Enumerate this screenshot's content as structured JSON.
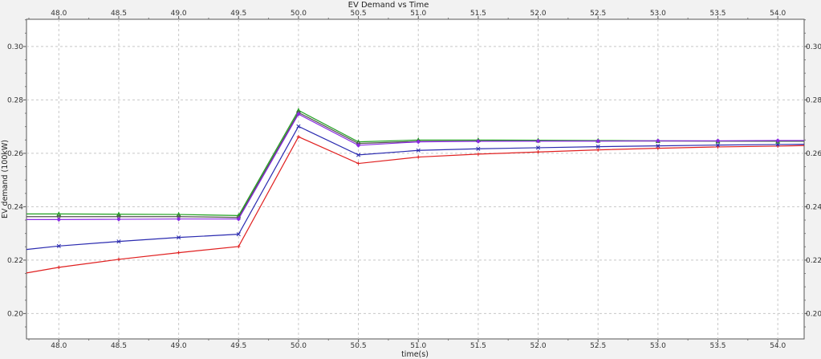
{
  "chart_data": {
    "type": "line",
    "title": "EV Demand vs Time",
    "xlabel": "time(s)",
    "ylabel": "EV demand (100kW)",
    "xlim": [
      47.73,
      54.22
    ],
    "ylim": [
      0.1905,
      0.3102
    ],
    "x_ticks": [
      "48.0",
      "48.5",
      "49.0",
      "49.5",
      "50.0",
      "50.5",
      "51.0",
      "51.5",
      "52.0",
      "52.5",
      "53.0",
      "53.5",
      "54.0"
    ],
    "y_ticks": [
      "0.20",
      "0.22",
      "0.24",
      "0.26",
      "0.28",
      "0.30"
    ],
    "x_tick_values": [
      48.0,
      48.5,
      49.0,
      49.5,
      50.0,
      50.5,
      51.0,
      51.5,
      52.0,
      52.5,
      53.0,
      53.5,
      54.0
    ],
    "y_tick_values": [
      0.2,
      0.22,
      0.24,
      0.26,
      0.28,
      0.3
    ],
    "grid": true,
    "axis_ticks_top_and_right": true,
    "x": [
      47.73,
      48.0,
      48.5,
      49.0,
      49.5,
      50.0,
      50.5,
      51.0,
      51.5,
      52.0,
      52.5,
      53.0,
      53.5,
      54.0,
      54.22
    ],
    "series": [
      {
        "color": "#e02020",
        "marker": "plus",
        "values": [
          0.2152,
          0.2173,
          0.2203,
          0.2228,
          0.2251,
          0.2662,
          0.2562,
          0.2586,
          0.2597,
          0.2605,
          0.2613,
          0.2619,
          0.2624,
          0.2627,
          0.2629
        ]
      },
      {
        "color": "#2b2bb0",
        "marker": "x",
        "values": [
          0.224,
          0.2253,
          0.227,
          0.2285,
          0.2297,
          0.2701,
          0.2594,
          0.2611,
          0.2617,
          0.2621,
          0.2625,
          0.2628,
          0.2631,
          0.2633,
          0.2634
        ]
      },
      {
        "color": "#20a020",
        "marker": "triangle",
        "values": [
          0.2373,
          0.2373,
          0.2372,
          0.2371,
          0.2367,
          0.2761,
          0.2643,
          0.265,
          0.265,
          0.2649,
          0.2648,
          0.2647,
          0.2646,
          0.2645,
          0.2645
        ]
      },
      {
        "color": "#505050",
        "marker": "circle",
        "values": [
          0.2363,
          0.2363,
          0.2363,
          0.2363,
          0.236,
          0.2753,
          0.2637,
          0.2645,
          0.2646,
          0.2646,
          0.2646,
          0.2646,
          0.2646,
          0.2646,
          0.2646
        ]
      },
      {
        "color": "#8a2be2",
        "marker": "diamond",
        "values": [
          0.2352,
          0.2352,
          0.2353,
          0.2354,
          0.2354,
          0.2747,
          0.263,
          0.2643,
          0.2645,
          0.2646,
          0.2646,
          0.2647,
          0.2647,
          0.2648,
          0.2648
        ]
      }
    ]
  }
}
